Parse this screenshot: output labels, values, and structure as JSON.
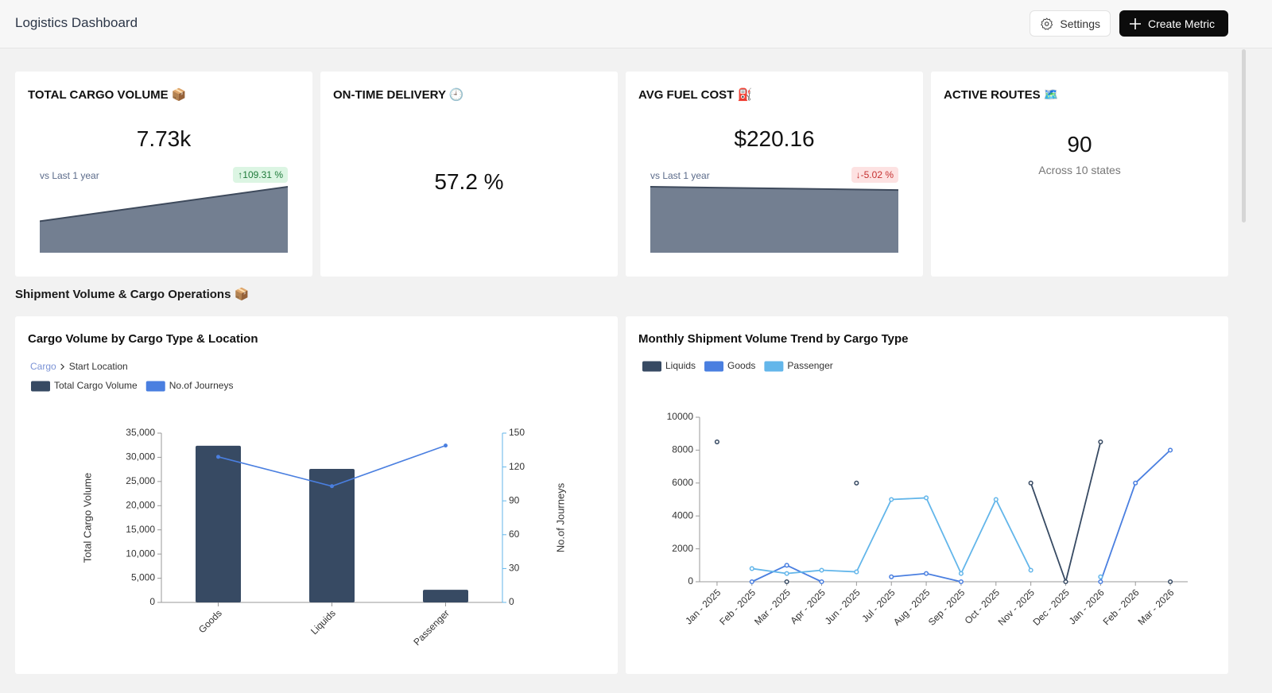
{
  "header": {
    "title": "Logistics Dashboard",
    "buttons": [
      "Settings",
      "Create Metric"
    ]
  },
  "kpis": [
    {
      "title": "TOTAL CARGO VOLUME 📦",
      "value": "7.73k",
      "comparison": "vs Last 1 year",
      "change": "↑109.31 %",
      "trend": "up",
      "sparkline": {
        "type": "area",
        "values": [
          3.69,
          7.73
        ],
        "ylim": [
          0,
          7.73
        ],
        "color": "#737f91"
      }
    },
    {
      "title": "ON-TIME DELIVERY 🕘",
      "value": "57.2 %"
    },
    {
      "title": "AVG FUEL COST ⛽",
      "value": "$220.16",
      "comparison": "vs Last 1 year",
      "change": "↓-5.02 %",
      "trend": "down",
      "sparkline": {
        "type": "area",
        "values": [
          231.8,
          220.16
        ],
        "ylim": [
          0,
          231.8
        ],
        "color": "#737f91"
      }
    },
    {
      "title": "ACTIVE ROUTES 🗺️",
      "value": "90",
      "subtitle": "Across 10 states"
    }
  ],
  "section_title": "Shipment Volume & Cargo Operations 📦",
  "chart_data": [
    {
      "type": "bar_line",
      "title": "Cargo Volume by Cargo Type & Location",
      "breadcrumb": [
        "Cargo",
        "Start Location"
      ],
      "categories": [
        "Goods",
        "Liquids",
        "Passenger"
      ],
      "series": [
        {
          "name": "Total Cargo Volume",
          "type": "bar",
          "color": "#374a63",
          "values": [
            32400,
            27600,
            2600
          ]
        },
        {
          "name": "No.of Journeys",
          "type": "line",
          "axis": "y2",
          "color": "#4a7fe0",
          "values": [
            129,
            103,
            139
          ]
        }
      ],
      "ylabel": "Total Cargo Volume",
      "y2label": "No.of Journeys",
      "ylim": [
        0,
        35000
      ],
      "yticks": [
        0,
        {
          "value": 5000,
          "label": "5,000"
        },
        {
          "value": 10000,
          "label": "10,000"
        },
        {
          "value": 15000,
          "label": "15,000"
        },
        {
          "value": 20000,
          "label": "20,000"
        },
        {
          "value": 25000,
          "label": "25,000"
        },
        {
          "value": 30000,
          "label": "30,000"
        },
        {
          "value": 35000,
          "label": "35,000"
        }
      ],
      "y2lim": [
        0,
        150
      ],
      "y2ticks": [
        0,
        30,
        60,
        90,
        120,
        150
      ],
      "y2color": "#63b6ea"
    },
    {
      "type": "line",
      "title": "Monthly Shipment Volume Trend by Cargo Type",
      "categories": [
        "Jan - 2025",
        "Feb - 2025",
        "Mar - 2025",
        "Apr - 2025",
        "Jun - 2025",
        "Jul - 2025",
        "Aug - 2025",
        "Sep - 2025",
        "Oct - 2025",
        "Nov - 2025",
        "Dec - 2025",
        "Jan - 2026",
        "Feb - 2026",
        "Mar - 2026"
      ],
      "series": [
        {
          "name": "Liquids",
          "color": "#374a63",
          "values": [
            8500,
            null,
            0,
            null,
            6000,
            null,
            null,
            null,
            null,
            6000,
            0,
            8500,
            null,
            0
          ]
        },
        {
          "name": "Goods",
          "color": "#4a7fe0",
          "values": [
            null,
            0,
            1000,
            0,
            null,
            300,
            500,
            0,
            null,
            null,
            null,
            0,
            6000,
            8000
          ]
        },
        {
          "name": "Passenger",
          "color": "#63b6ea",
          "values": [
            null,
            800,
            500,
            700,
            600,
            5000,
            5100,
            500,
            5000,
            700,
            null,
            300,
            null,
            null
          ]
        }
      ],
      "ylim": [
        0,
        10000
      ],
      "yticks": [
        0,
        2000,
        4000,
        6000,
        8000,
        10000
      ]
    }
  ]
}
